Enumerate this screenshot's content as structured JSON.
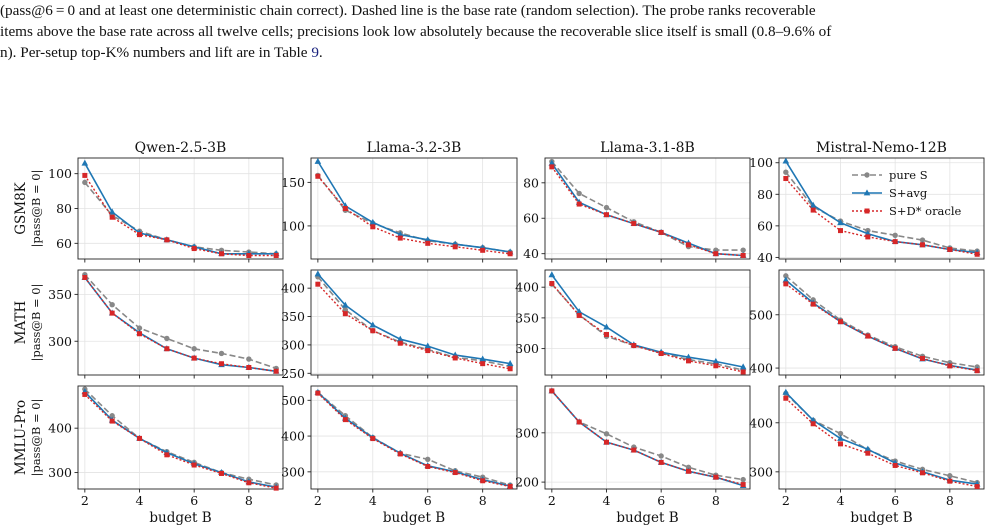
{
  "caption": {
    "line1": "(pass@6 = 0 and at least one deterministic chain correct). Dashed line is the base rate (random selection). The probe ranks recoverable",
    "line2": "items above the base rate across all twelve cells; precisions look low absolutely because the recoverable slice itself is small (0.8–9.6% of",
    "line3_prefix": "n). Per-setup top-K% numbers and lift are in Table ",
    "table_ref": "9",
    "line3_suffix": "."
  },
  "colors": {
    "pure": "#888888",
    "avg": "#1f77b4",
    "oracle": "#d62728"
  },
  "chart_data": {
    "type": "line",
    "x": [
      2,
      3,
      4,
      5,
      6,
      7,
      8,
      9
    ],
    "xlabel": "budget B",
    "legend": {
      "location": "top-right of Mistral-Nemo-12B GSM8K panel",
      "entries": [
        {
          "key": "pure",
          "label": "pure S"
        },
        {
          "key": "avg",
          "label": "S+avg"
        },
        {
          "key": "oracle",
          "label": "S+D* oracle"
        }
      ]
    },
    "columns": [
      "Qwen-2.5-3B",
      "Llama-3.2-3B",
      "Llama-3.1-8B",
      "Mistral-Nemo-12B"
    ],
    "rows": [
      {
        "dataset": "GSM8K",
        "ylabel": "|pass@B = 0|"
      },
      {
        "dataset": "MATH",
        "ylabel": "|pass@B = 0|"
      },
      {
        "dataset": "MMLU-Pro",
        "ylabel": "|pass@B = 0|"
      }
    ],
    "panels": [
      {
        "model": "Qwen-2.5-3B",
        "dataset": "GSM8K",
        "ylim": [
          51,
          109
        ],
        "yticks": [
          60,
          80,
          100
        ],
        "series": {
          "pure": [
            95,
            76,
            67,
            62,
            58,
            56,
            55,
            54
          ],
          "avg": [
            106,
            78,
            66,
            62,
            58,
            54,
            54,
            54
          ],
          "oracle": [
            99,
            75,
            65,
            62,
            57,
            54,
            53,
            53
          ]
        }
      },
      {
        "model": "Llama-3.2-3B",
        "dataset": "GSM8K",
        "ylim": [
          62,
          178
        ],
        "yticks": [
          100,
          150
        ],
        "series": {
          "pure": [
            158,
            118,
            103,
            92,
            83,
            79,
            75,
            70
          ],
          "avg": [
            174,
            123,
            104,
            90,
            84,
            79,
            75,
            70
          ],
          "oracle": [
            157,
            120,
            99,
            86,
            80,
            76,
            72,
            68
          ]
        }
      },
      {
        "model": "Llama-3.1-8B",
        "dataset": "GSM8K",
        "ylim": [
          37,
          94
        ],
        "yticks": [
          40,
          60,
          80
        ],
        "series": {
          "pure": [
            92,
            74,
            66,
            58,
            52,
            44,
            42,
            42
          ],
          "avg": [
            91,
            69,
            62,
            57,
            52,
            46,
            40,
            39
          ],
          "oracle": [
            89,
            68,
            62,
            57,
            52,
            45,
            40,
            39
          ]
        }
      },
      {
        "model": "Mistral-Nemo-12B",
        "dataset": "GSM8K",
        "ylim": [
          39,
          103
        ],
        "yticks": [
          40,
          60,
          80,
          100
        ],
        "series": {
          "pure": [
            94,
            72,
            63,
            57,
            54,
            51,
            46,
            44
          ],
          "avg": [
            101,
            73,
            62,
            55,
            50,
            48,
            45,
            43
          ],
          "oracle": [
            90,
            70,
            57,
            53,
            50,
            48,
            45,
            42
          ]
        }
      },
      {
        "model": "Qwen-2.5-3B",
        "dataset": "MATH",
        "ylim": [
          264,
          376
        ],
        "yticks": [
          300,
          350
        ],
        "series": {
          "pure": [
            371,
            339,
            314,
            303,
            292,
            287,
            281,
            271
          ],
          "avg": [
            368,
            330,
            309,
            292,
            282,
            275,
            272,
            268
          ],
          "oracle": [
            368,
            330,
            308,
            292,
            282,
            276,
            272,
            268
          ]
        }
      },
      {
        "model": "Llama-3.2-3B",
        "dataset": "MATH",
        "ylim": [
          247,
          432
        ],
        "yticks": [
          250,
          300,
          350,
          400
        ],
        "series": {
          "pure": [
            420,
            362,
            325,
            305,
            292,
            278,
            272,
            262
          ],
          "avg": [
            425,
            370,
            335,
            310,
            298,
            282,
            275,
            267
          ],
          "oracle": [
            407,
            355,
            325,
            303,
            290,
            277,
            267,
            258
          ]
        }
      },
      {
        "model": "Llama-3.1-8B",
        "dataset": "MATH",
        "ylim": [
          257,
          428
        ],
        "yticks": [
          300,
          350,
          400
        ],
        "series": {
          "pure": [
            405,
            355,
            320,
            305,
            293,
            282,
            275,
            265
          ],
          "avg": [
            420,
            360,
            335,
            306,
            294,
            286,
            279,
            270
          ],
          "oracle": [
            406,
            354,
            323,
            305,
            292,
            280,
            272,
            262
          ]
        }
      },
      {
        "model": "Mistral-Nemo-12B",
        "dataset": "MATH",
        "ylim": [
          387,
          584
        ],
        "yticks": [
          400,
          500
        ],
        "series": {
          "pure": [
            573,
            528,
            490,
            462,
            440,
            422,
            410,
            402
          ],
          "avg": [
            565,
            522,
            487,
            460,
            437,
            417,
            405,
            396
          ],
          "oracle": [
            558,
            520,
            487,
            460,
            437,
            418,
            404,
            395
          ]
        }
      },
      {
        "model": "Qwen-2.5-3B",
        "dataset": "MMLU-Pro",
        "ylim": [
          263,
          495
        ],
        "yticks": [
          300,
          400
        ],
        "series": {
          "pure": [
            488,
            428,
            377,
            347,
            323,
            300,
            285,
            272
          ],
          "avg": [
            482,
            418,
            377,
            345,
            320,
            300,
            279,
            267
          ],
          "oracle": [
            476,
            416,
            377,
            340,
            317,
            298,
            277,
            265
          ]
        }
      },
      {
        "model": "Llama-3.2-3B",
        "dataset": "MMLU-Pro",
        "ylim": [
          252,
          540
        ],
        "yticks": [
          300,
          400,
          500
        ],
        "series": {
          "pure": [
            522,
            457,
            396,
            352,
            335,
            303,
            285,
            263
          ],
          "avg": [
            522,
            450,
            395,
            352,
            317,
            300,
            278,
            260
          ],
          "oracle": [
            520,
            446,
            393,
            350,
            315,
            298,
            275,
            259
          ]
        }
      },
      {
        "model": "Llama-3.1-8B",
        "dataset": "MMLU-Pro",
        "ylim": [
          186,
          395
        ],
        "yticks": [
          200,
          300
        ],
        "series": {
          "pure": [
            385,
            322,
            298,
            271,
            253,
            230,
            214,
            205
          ],
          "avg": [
            385,
            322,
            281,
            265,
            240,
            222,
            210,
            193
          ],
          "oracle": [
            385,
            322,
            281,
            265,
            240,
            222,
            210,
            195
          ]
        }
      },
      {
        "model": "Mistral-Nemo-12B",
        "dataset": "MMLU-Pro",
        "ylim": [
          265,
          475
        ],
        "yticks": [
          300,
          400
        ],
        "series": {
          "pure": [
            460,
            405,
            378,
            345,
            322,
            305,
            292,
            278
          ],
          "avg": [
            462,
            405,
            368,
            346,
            318,
            300,
            283,
            275
          ],
          "oracle": [
            450,
            398,
            357,
            338,
            313,
            298,
            281,
            270
          ]
        }
      }
    ]
  }
}
